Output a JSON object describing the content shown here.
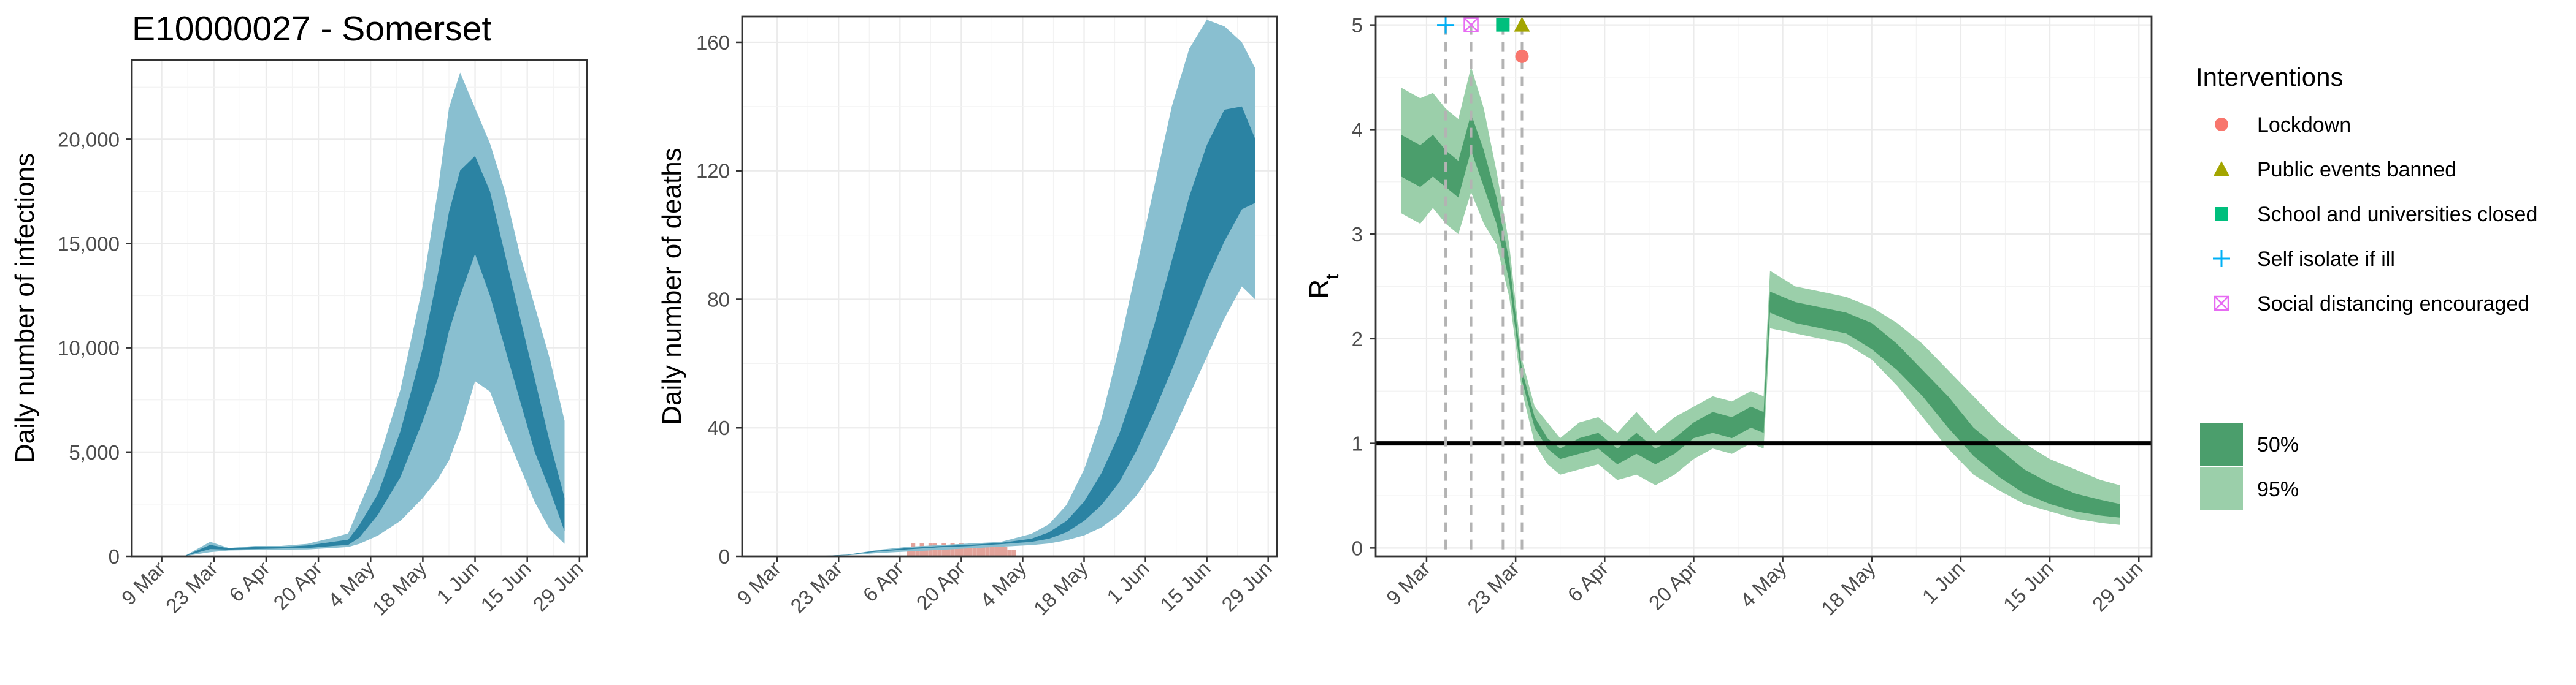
{
  "title": "E10000027 - Somerset",
  "colors": {
    "band_outer": "#89bfd0",
    "band_inner": "#2b83a3",
    "rt_outer": "#9bcfaa",
    "rt_inner": "#4b9e6c",
    "rt_line": "#3f8a5a",
    "lockdown": "#f8766d",
    "public_events": "#a3a500",
    "school": "#00bf7d",
    "self_isolate": "#00b0f6",
    "social_distancing": "#e76bf3",
    "observed_deaths_bar": "#e3a39a"
  },
  "chart_data": [
    {
      "type": "area",
      "title": "E10000027 - Somerset",
      "xlabel": "",
      "ylabel": "Daily number of infections",
      "x_ticks": [
        "9 Mar",
        "23 Mar",
        "6 Apr",
        "20 Apr",
        "4 May",
        "18 May",
        "1 Jun",
        "15 Jun",
        "29 Jun"
      ],
      "y_ticks": [
        "0",
        "5,000",
        "10,000",
        "15,000",
        "20,000"
      ],
      "ylim": [
        0,
        23800
      ],
      "grid": true,
      "series": [
        {
          "name": "95%",
          "x": [
            "2020-03-01",
            "2020-03-15",
            "2020-03-22",
            "2020-03-27",
            "2020-04-03",
            "2020-04-10",
            "2020-04-17",
            "2020-04-24",
            "2020-04-28",
            "2020-05-01",
            "2020-05-06",
            "2020-05-12",
            "2020-05-18",
            "2020-05-22",
            "2020-05-25",
            "2020-05-28",
            "2020-06-01",
            "2020-06-05",
            "2020-06-09",
            "2020-06-13",
            "2020-06-17",
            "2020-06-21",
            "2020-06-25"
          ],
          "lower": [
            0,
            0,
            200,
            280,
            300,
            320,
            330,
            400,
            450,
            600,
            1000,
            1700,
            2800,
            3700,
            4600,
            6000,
            8400,
            7900,
            6000,
            4300,
            2600,
            1300,
            600
          ],
          "upper": [
            0,
            0,
            700,
            400,
            500,
            500,
            600,
            900,
            1100,
            2400,
            4500,
            8000,
            13000,
            17500,
            21500,
            23200,
            21500,
            19800,
            17500,
            14500,
            12000,
            9500,
            6500
          ]
        },
        {
          "name": "50%",
          "x": [
            "2020-03-01",
            "2020-03-15",
            "2020-03-22",
            "2020-03-27",
            "2020-04-03",
            "2020-04-10",
            "2020-04-17",
            "2020-04-24",
            "2020-04-28",
            "2020-05-01",
            "2020-05-06",
            "2020-05-12",
            "2020-05-18",
            "2020-05-22",
            "2020-05-25",
            "2020-05-28",
            "2020-06-01",
            "2020-06-05",
            "2020-06-09",
            "2020-06-13",
            "2020-06-17",
            "2020-06-21",
            "2020-06-25"
          ],
          "lower": [
            0,
            0,
            350,
            320,
            350,
            380,
            400,
            500,
            550,
            900,
            2000,
            3800,
            6500,
            8500,
            10800,
            12500,
            14500,
            12500,
            10000,
            7500,
            5000,
            3200,
            1200
          ],
          "upper": [
            0,
            0,
            550,
            380,
            450,
            450,
            520,
            700,
            800,
            1500,
            3000,
            6000,
            10000,
            13500,
            16500,
            18500,
            19200,
            17500,
            14500,
            11500,
            8500,
            5500,
            2800
          ]
        }
      ]
    },
    {
      "type": "area",
      "xlabel": "",
      "ylabel": "Daily number of deaths",
      "x_ticks": [
        "9 Mar",
        "23 Mar",
        "6 Apr",
        "20 Apr",
        "4 May",
        "18 May",
        "1 Jun",
        "15 Jun",
        "29 Jun"
      ],
      "y_ticks": [
        "0",
        "40",
        "80",
        "120",
        "160"
      ],
      "ylim": [
        0,
        168
      ],
      "grid": true,
      "series": [
        {
          "name": "95%",
          "x": [
            "2020-03-01",
            "2020-03-17",
            "2020-03-25",
            "2020-04-01",
            "2020-04-08",
            "2020-04-15",
            "2020-04-22",
            "2020-04-29",
            "2020-05-06",
            "2020-05-10",
            "2020-05-14",
            "2020-05-18",
            "2020-05-22",
            "2020-05-26",
            "2020-05-30",
            "2020-06-03",
            "2020-06-07",
            "2020-06-11",
            "2020-06-15",
            "2020-06-19",
            "2020-06-23",
            "2020-06-26"
          ],
          "lower": [
            0,
            0,
            0.3,
            1.0,
            1.5,
            2.0,
            2.5,
            3.0,
            3.5,
            4.0,
            5.0,
            6.5,
            9.0,
            13,
            19,
            27,
            38,
            50,
            62,
            74,
            84,
            80
          ],
          "upper": [
            0,
            0,
            0.5,
            2.0,
            3.0,
            3.5,
            4.0,
            4.5,
            7.0,
            10,
            16,
            27,
            43,
            65,
            90,
            115,
            140,
            158,
            167,
            165,
            160,
            152
          ]
        },
        {
          "name": "50%",
          "x": [
            "2020-03-01",
            "2020-03-17",
            "2020-03-25",
            "2020-04-01",
            "2020-04-08",
            "2020-04-15",
            "2020-04-22",
            "2020-04-29",
            "2020-05-06",
            "2020-05-10",
            "2020-05-14",
            "2020-05-18",
            "2020-05-22",
            "2020-05-26",
            "2020-05-30",
            "2020-06-03",
            "2020-06-07",
            "2020-06-11",
            "2020-06-15",
            "2020-06-19",
            "2020-06-23",
            "2020-06-26"
          ],
          "lower": [
            0,
            0,
            0.4,
            1.5,
            2.2,
            2.8,
            3.2,
            3.8,
            4.5,
            5.5,
            7.5,
            11,
            16,
            23,
            33,
            45,
            58,
            72,
            86,
            98,
            108,
            110
          ],
          "upper": [
            0,
            0,
            0.5,
            1.8,
            2.6,
            3.2,
            3.6,
            4.2,
            5.5,
            7.5,
            11,
            17,
            26,
            38,
            54,
            72,
            92,
            112,
            128,
            139,
            140,
            130
          ]
        }
      ],
      "observed_deaths": {
        "x": [
          "2020-04-08",
          "2020-04-09",
          "2020-04-10",
          "2020-04-11",
          "2020-04-12",
          "2020-04-13",
          "2020-04-14",
          "2020-04-15",
          "2020-04-16",
          "2020-04-17",
          "2020-04-18",
          "2020-04-19",
          "2020-04-20",
          "2020-04-21",
          "2020-04-22",
          "2020-04-23",
          "2020-04-24",
          "2020-04-25",
          "2020-04-26",
          "2020-04-27",
          "2020-04-28",
          "2020-04-29",
          "2020-04-30",
          "2020-05-01",
          "2020-05-02"
        ],
        "values": [
          3,
          4,
          3,
          4,
          3,
          4,
          4,
          3,
          4,
          3,
          4,
          3,
          4,
          3,
          4,
          3,
          4,
          3,
          4,
          3,
          4,
          3,
          3,
          2,
          2
        ]
      }
    },
    {
      "type": "area",
      "xlabel": "",
      "ylabel": "R",
      "ylabel_subscript": "t",
      "x_ticks": [
        "9 Mar",
        "23 Mar",
        "6 Apr",
        "20 Apr",
        "4 May",
        "18 May",
        "1 Jun",
        "15 Jun",
        "29 Jun"
      ],
      "y_ticks": [
        "0",
        "1",
        "2",
        "3",
        "4",
        "5"
      ],
      "ylim": [
        -0.08,
        5.08
      ],
      "grid": true,
      "reference_line": 1,
      "series": [
        {
          "name": "95%",
          "x": [
            "2020-03-05",
            "2020-03-08",
            "2020-03-10",
            "2020-03-12",
            "2020-03-14",
            "2020-03-16",
            "2020-03-18",
            "2020-03-20",
            "2020-03-22",
            "2020-03-24",
            "2020-03-26",
            "2020-03-28",
            "2020-03-30",
            "2020-04-02",
            "2020-04-05",
            "2020-04-08",
            "2020-04-11",
            "2020-04-14",
            "2020-04-17",
            "2020-04-20",
            "2020-04-23",
            "2020-04-26",
            "2020-04-29",
            "2020-05-01",
            "2020-05-02",
            "2020-05-06",
            "2020-05-10",
            "2020-05-14",
            "2020-05-18",
            "2020-05-22",
            "2020-05-26",
            "2020-05-30",
            "2020-06-03",
            "2020-06-07",
            "2020-06-11",
            "2020-06-15",
            "2020-06-19",
            "2020-06-23",
            "2020-06-26"
          ],
          "lower": [
            3.2,
            3.1,
            3.25,
            3.1,
            3.0,
            3.4,
            3.1,
            2.9,
            2.4,
            1.5,
            1.0,
            0.8,
            0.7,
            0.75,
            0.8,
            0.65,
            0.7,
            0.6,
            0.7,
            0.85,
            0.95,
            0.9,
            1.0,
            0.95,
            2.1,
            2.05,
            2.0,
            1.95,
            1.8,
            1.55,
            1.25,
            0.95,
            0.7,
            0.55,
            0.42,
            0.35,
            0.28,
            0.24,
            0.22
          ],
          "upper": [
            4.4,
            4.3,
            4.35,
            4.2,
            4.1,
            4.6,
            4.2,
            3.6,
            2.9,
            1.8,
            1.35,
            1.2,
            1.05,
            1.2,
            1.25,
            1.1,
            1.3,
            1.1,
            1.25,
            1.35,
            1.45,
            1.4,
            1.5,
            1.45,
            2.65,
            2.5,
            2.45,
            2.4,
            2.3,
            2.15,
            1.95,
            1.7,
            1.45,
            1.2,
            1.0,
            0.85,
            0.75,
            0.65,
            0.6
          ]
        },
        {
          "name": "50%",
          "x": [
            "2020-03-05",
            "2020-03-08",
            "2020-03-10",
            "2020-03-12",
            "2020-03-14",
            "2020-03-16",
            "2020-03-18",
            "2020-03-20",
            "2020-03-22",
            "2020-03-24",
            "2020-03-26",
            "2020-03-28",
            "2020-03-30",
            "2020-04-02",
            "2020-04-05",
            "2020-04-08",
            "2020-04-11",
            "2020-04-14",
            "2020-04-17",
            "2020-04-20",
            "2020-04-23",
            "2020-04-26",
            "2020-04-29",
            "2020-05-01",
            "2020-05-02",
            "2020-05-06",
            "2020-05-10",
            "2020-05-14",
            "2020-05-18",
            "2020-05-22",
            "2020-05-26",
            "2020-05-30",
            "2020-06-03",
            "2020-06-07",
            "2020-06-11",
            "2020-06-15",
            "2020-06-19",
            "2020-06-23",
            "2020-06-26"
          ],
          "lower": [
            3.55,
            3.45,
            3.55,
            3.45,
            3.35,
            3.8,
            3.45,
            3.1,
            2.55,
            1.6,
            1.15,
            0.95,
            0.85,
            0.9,
            0.95,
            0.8,
            0.9,
            0.8,
            0.9,
            1.05,
            1.1,
            1.05,
            1.15,
            1.1,
            2.25,
            2.15,
            2.1,
            2.05,
            1.9,
            1.7,
            1.45,
            1.15,
            0.88,
            0.68,
            0.52,
            0.42,
            0.35,
            0.31,
            0.29
          ],
          "upper": [
            3.95,
            3.85,
            3.95,
            3.8,
            3.7,
            4.15,
            3.8,
            3.35,
            2.75,
            1.7,
            1.25,
            1.05,
            0.95,
            1.05,
            1.1,
            0.95,
            1.1,
            0.95,
            1.05,
            1.2,
            1.3,
            1.25,
            1.35,
            1.3,
            2.45,
            2.35,
            2.3,
            2.25,
            2.15,
            1.95,
            1.7,
            1.45,
            1.15,
            0.95,
            0.75,
            0.62,
            0.52,
            0.46,
            0.42
          ]
        }
      ],
      "interventions": [
        {
          "name": "Lockdown",
          "date": "2020-03-24",
          "marker_y": 4.7,
          "shape": "circle"
        },
        {
          "name": "Public events banned",
          "date": "2020-03-24",
          "marker_y": 5.0,
          "shape": "triangle"
        },
        {
          "name": "School and universities closed",
          "date": "2020-03-21",
          "marker_y": 5.0,
          "shape": "square"
        },
        {
          "name": "Self isolate if ill",
          "date": "2020-03-12",
          "marker_y": 5.0,
          "shape": "plus"
        },
        {
          "name": "Social distancing encouraged",
          "date": "2020-03-16",
          "marker_y": 5.0,
          "shape": "boxx"
        }
      ]
    }
  ],
  "legend": {
    "title": "Interventions",
    "items": [
      "Lockdown",
      "Public events banned",
      "School and universities closed",
      "Self isolate if ill",
      "Social distancing encouraged"
    ],
    "band_items": [
      "50%",
      "95%"
    ]
  }
}
